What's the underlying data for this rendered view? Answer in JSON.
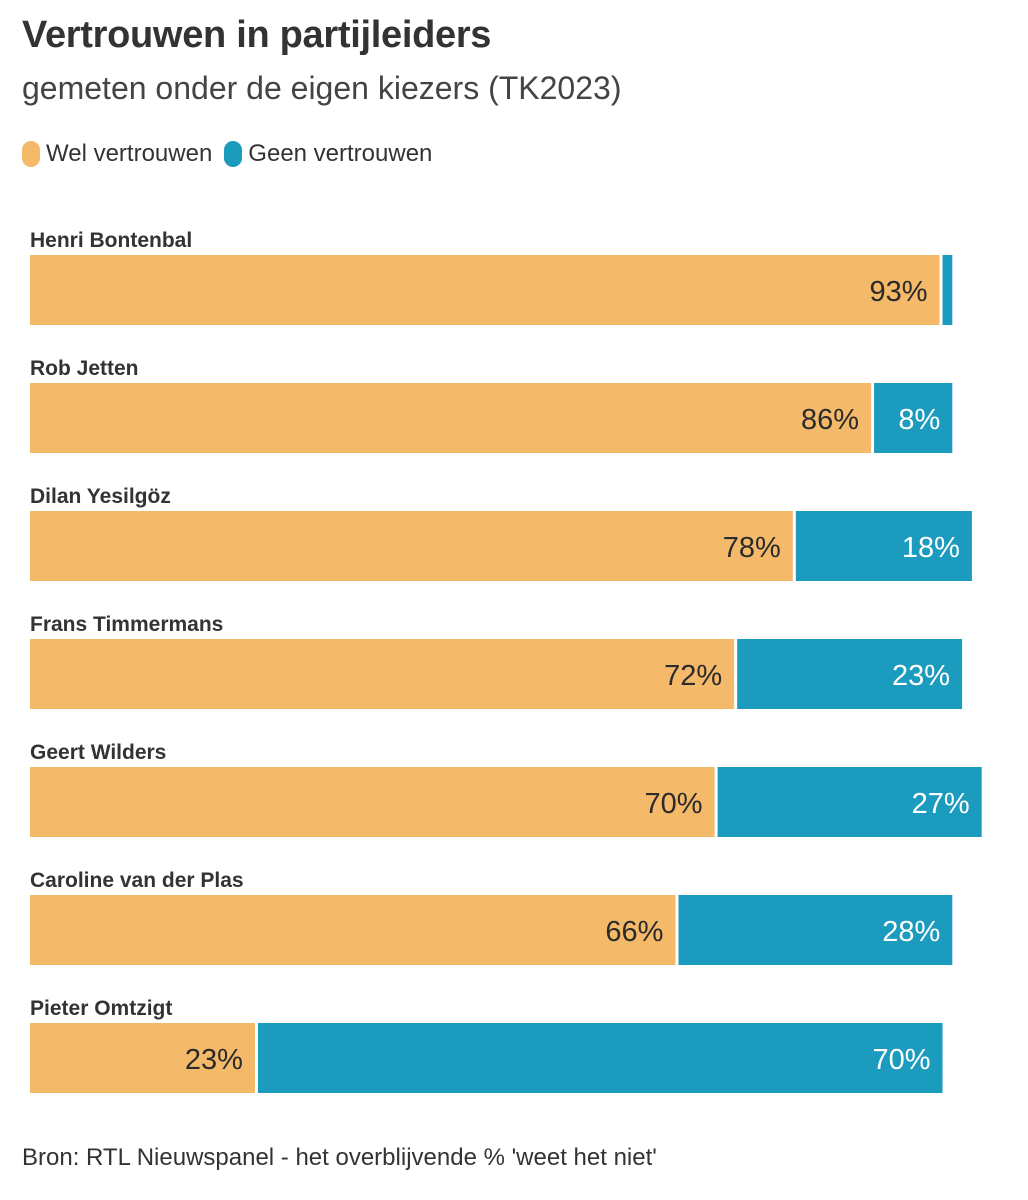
{
  "chart_data": {
    "type": "bar",
    "orientation": "horizontal",
    "stacked": true,
    "title": "Vertrouwen in partijleiders",
    "subtitle": "gemeten onder de eigen kiezers (TK2023)",
    "categories": [
      "Henri Bontenbal",
      "Rob Jetten",
      "Dilan Yesilgöz",
      "Frans Timmermans",
      "Geert Wilders",
      "Caroline van der Plas",
      "Pieter Omtzigt"
    ],
    "series": [
      {
        "name": "Wel vertrouwen",
        "color": "#f5b96a",
        "values": [
          93,
          86,
          78,
          72,
          70,
          66,
          23
        ],
        "labels": [
          "93%",
          "86%",
          "78%",
          "72%",
          "70%",
          "66%",
          "23%"
        ]
      },
      {
        "name": "Geen vertrouwen",
        "color": "#1b9bbd",
        "values": [
          1,
          8,
          18,
          23,
          27,
          28,
          70
        ],
        "labels": [
          "",
          "8%",
          "18%",
          "23%",
          "27%",
          "28%",
          "70%"
        ]
      }
    ],
    "xlim": [
      0,
      100
    ],
    "legend_position": "top-left",
    "grid": false,
    "source": "Bron: RTL Nieuwspanel - het overblijvende % 'weet het niet'"
  }
}
